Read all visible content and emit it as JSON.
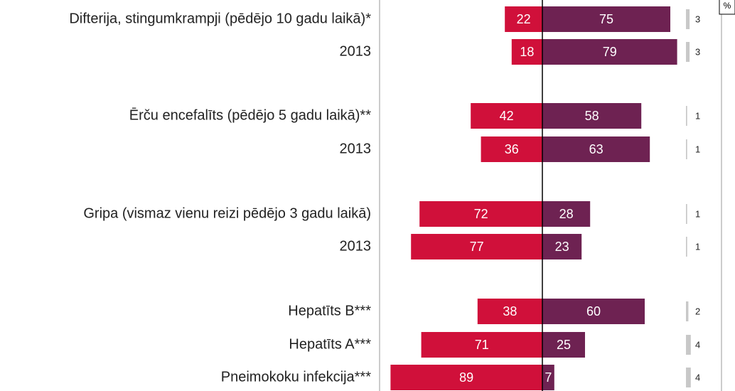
{
  "chart_data": {
    "type": "diverging-bar",
    "unit_label": "%",
    "categories": [
      "Difterija, stingumkrampji (pēdējo 10 gadu laikā)*",
      "2013",
      "Ērču encefalīts (pēdējo 5 gadu laikā)**",
      "2013",
      "Gripa (vismaz vienu reizi pēdējo 3 gadu laikā)",
      "2013",
      "Hepatīts B***",
      "Hepatīts A***",
      "Pneimokoku infekcija***"
    ],
    "series": [
      {
        "color": "#d0103a",
        "side": "left",
        "values": [
          22,
          18,
          42,
          36,
          72,
          77,
          38,
          71,
          89
        ]
      },
      {
        "color": "#6e2252",
        "side": "right",
        "values": [
          75,
          79,
          58,
          63,
          28,
          23,
          60,
          25,
          7
        ]
      },
      {
        "color": "#c8c8c8",
        "side": "extra",
        "values": [
          3,
          3,
          1,
          1,
          1,
          1,
          2,
          4,
          4
        ]
      }
    ]
  }
}
